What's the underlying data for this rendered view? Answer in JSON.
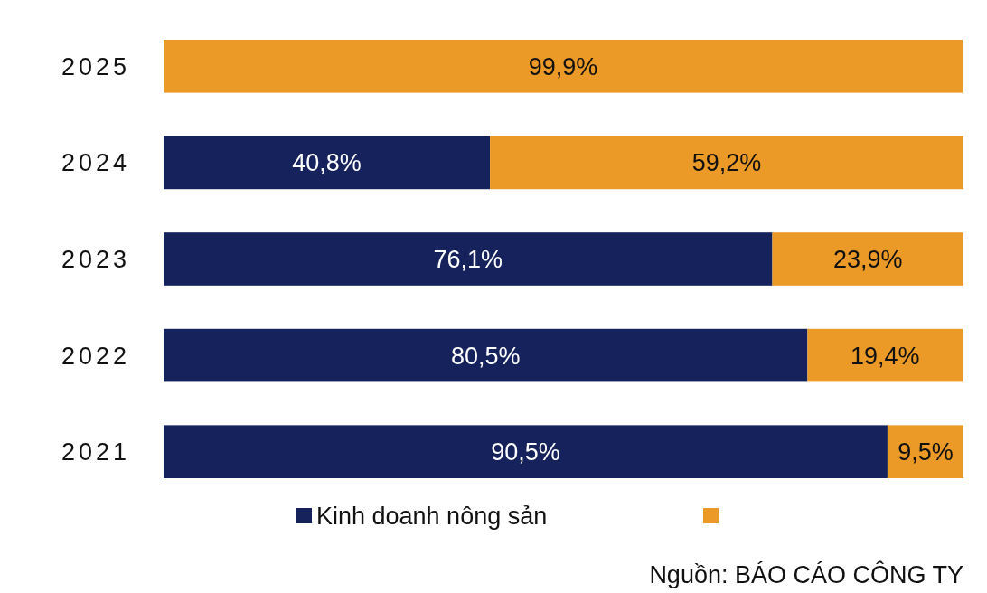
{
  "chart_data": {
    "type": "bar",
    "orientation": "horizontal",
    "stacked": true,
    "categories": [
      "2025",
      "2024",
      "2023",
      "2022",
      "2021"
    ],
    "series": [
      {
        "name": "Kinh doanh nông sản",
        "color": "#15225c",
        "values": [
          null,
          40.8,
          76.1,
          80.5,
          90.5
        ],
        "value_labels": [
          null,
          "40,8%",
          "76,1%",
          "80,5%",
          "90,5%"
        ]
      },
      {
        "color": "#ec9a27",
        "values": [
          99.9,
          59.2,
          23.9,
          19.4,
          9.5
        ],
        "value_labels": [
          "99,9%",
          "59,2%",
          "23,9%",
          "19,4%",
          "9,5%"
        ]
      }
    ],
    "legend": "bottom",
    "tick_labels": "y",
    "annotations": [
      "Nguồn: BÁO CÁO CÔNG TY"
    ]
  }
}
